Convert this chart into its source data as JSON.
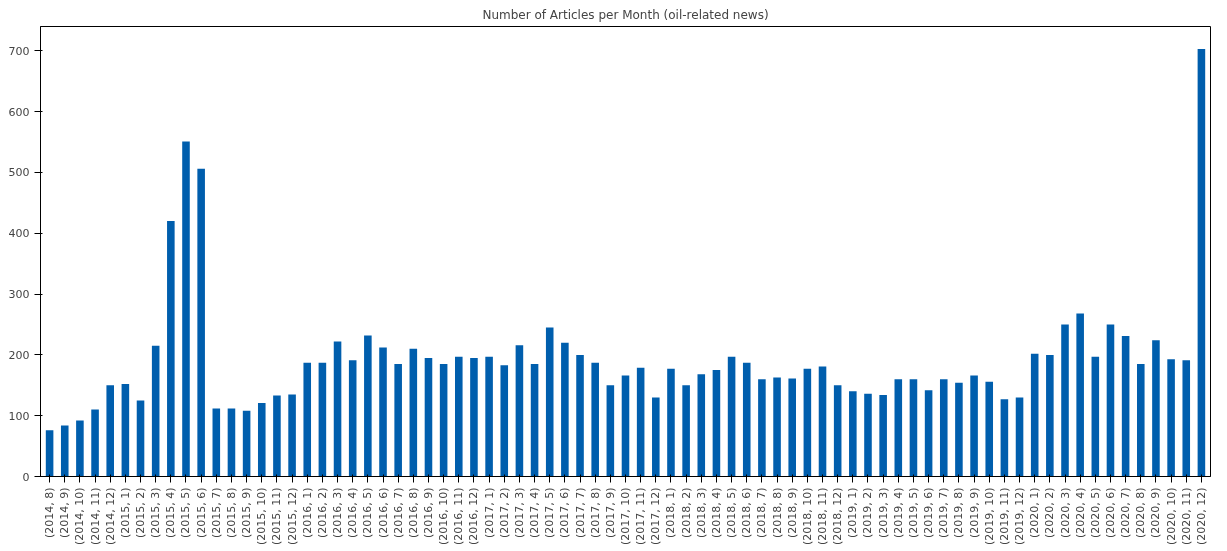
{
  "chart_data": {
    "type": "bar",
    "title": "Number of Articles per Month (oil-related news)",
    "categories": [
      "(2014, 8)",
      "(2014, 9)",
      "(2014, 10)",
      "(2014, 11)",
      "(2014, 12)",
      "(2015, 1)",
      "(2015, 2)",
      "(2015, 3)",
      "(2015, 4)",
      "(2015, 5)",
      "(2015, 6)",
      "(2015, 7)",
      "(2015, 8)",
      "(2015, 9)",
      "(2015, 10)",
      "(2015, 11)",
      "(2015, 12)",
      "(2016, 1)",
      "(2016, 2)",
      "(2016, 3)",
      "(2016, 4)",
      "(2016, 5)",
      "(2016, 6)",
      "(2016, 7)",
      "(2016, 8)",
      "(2016, 9)",
      "(2016, 10)",
      "(2016, 11)",
      "(2016, 12)",
      "(2017, 1)",
      "(2017, 2)",
      "(2017, 3)",
      "(2017, 4)",
      "(2017, 5)",
      "(2017, 6)",
      "(2017, 7)",
      "(2017, 8)",
      "(2017, 9)",
      "(2017, 10)",
      "(2017, 11)",
      "(2017, 12)",
      "(2018, 1)",
      "(2018, 2)",
      "(2018, 3)",
      "(2018, 4)",
      "(2018, 5)",
      "(2018, 6)",
      "(2018, 7)",
      "(2018, 8)",
      "(2018, 9)",
      "(2018, 10)",
      "(2018, 11)",
      "(2018, 12)",
      "(2019, 1)",
      "(2019, 2)",
      "(2019, 3)",
      "(2019, 4)",
      "(2019, 5)",
      "(2019, 6)",
      "(2019, 7)",
      "(2019, 8)",
      "(2019, 9)",
      "(2019, 10)",
      "(2019, 11)",
      "(2019, 12)",
      "(2020, 1)",
      "(2020, 2)",
      "(2020, 3)",
      "(2020, 4)",
      "(2020, 5)",
      "(2020, 6)",
      "(2020, 7)",
      "(2020, 8)",
      "(2020, 9)",
      "(2020, 10)",
      "(2020, 11)",
      "(2020, 12)"
    ],
    "values": [
      76,
      84,
      92,
      110,
      150,
      152,
      125,
      215,
      420,
      551,
      506,
      112,
      112,
      108,
      121,
      133,
      135,
      187,
      187,
      222,
      191,
      232,
      212,
      185,
      210,
      195,
      185,
      197,
      195,
      197,
      183,
      216,
      185,
      245,
      220,
      200,
      187,
      150,
      166,
      179,
      130,
      177,
      150,
      168,
      175,
      197,
      187,
      160,
      163,
      161,
      177,
      181,
      150,
      140,
      136,
      134,
      160,
      160,
      142,
      160,
      154,
      166,
      156,
      127,
      130,
      202,
      200,
      250,
      268,
      197,
      250,
      231,
      185,
      224,
      193,
      191,
      703
    ],
    "color": "#005ead",
    "ylim": [
      0,
      740
    ],
    "yticks": [
      0,
      100,
      200,
      300,
      400,
      500,
      600,
      700
    ],
    "grid": false
  }
}
